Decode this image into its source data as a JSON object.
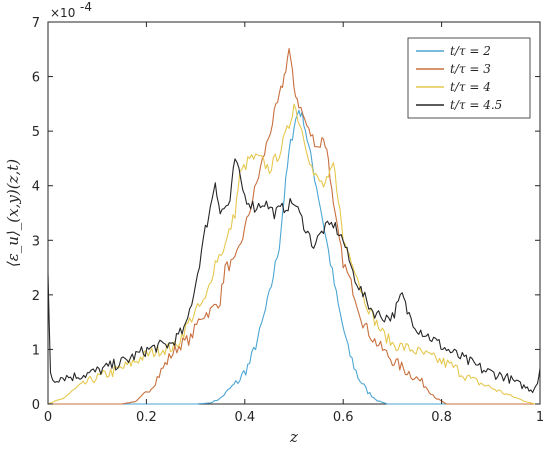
{
  "chart_data": {
    "type": "line",
    "title": "",
    "xlabel": "z",
    "ylabel": "⟨ε_u⟩_(x,y)(z,t)",
    "xlim": [
      0,
      1
    ],
    "ylim": [
      0,
      7
    ],
    "y_multiplier_label": "×10",
    "y_multiplier_exponent": "-4",
    "xticks": [
      "0",
      "0.2",
      "0.4",
      "0.6",
      "0.8",
      "1"
    ],
    "yticks": [
      "0",
      "1",
      "2",
      "3",
      "4",
      "5",
      "6",
      "7"
    ],
    "grid": false,
    "legend_position": "top-right",
    "series": [
      {
        "name": "t/τ = 2",
        "color": "#4DA6D3",
        "points": [
          [
            0,
            0
          ],
          [
            0.3,
            0
          ],
          [
            0.33,
            0.02
          ],
          [
            0.35,
            0.1
          ],
          [
            0.37,
            0.28
          ],
          [
            0.39,
            0.45
          ],
          [
            0.41,
            0.75
          ],
          [
            0.43,
            1.3
          ],
          [
            0.45,
            2.0
          ],
          [
            0.47,
            2.9
          ],
          [
            0.48,
            3.8
          ],
          [
            0.49,
            4.6
          ],
          [
            0.5,
            5.1
          ],
          [
            0.51,
            5.4
          ],
          [
            0.52,
            5.2
          ],
          [
            0.53,
            4.7
          ],
          [
            0.55,
            3.8
          ],
          [
            0.57,
            2.8
          ],
          [
            0.59,
            1.8
          ],
          [
            0.61,
            1.0
          ],
          [
            0.63,
            0.5
          ],
          [
            0.65,
            0.22
          ],
          [
            0.67,
            0.06
          ],
          [
            0.69,
            0.0
          ],
          [
            1,
            0
          ]
        ]
      },
      {
        "name": "t/τ = 3",
        "color": "#C8703F",
        "points": [
          [
            0,
            0
          ],
          [
            0.15,
            0
          ],
          [
            0.18,
            0.05
          ],
          [
            0.21,
            0.3
          ],
          [
            0.23,
            0.6
          ],
          [
            0.25,
            0.9
          ],
          [
            0.27,
            1.1
          ],
          [
            0.29,
            1.2
          ],
          [
            0.31,
            1.6
          ],
          [
            0.33,
            1.7
          ],
          [
            0.35,
            1.9
          ],
          [
            0.36,
            2.5
          ],
          [
            0.38,
            2.6
          ],
          [
            0.4,
            3.2
          ],
          [
            0.42,
            3.9
          ],
          [
            0.44,
            4.6
          ],
          [
            0.46,
            5.3
          ],
          [
            0.47,
            5.6
          ],
          [
            0.48,
            6.0
          ],
          [
            0.49,
            6.5
          ],
          [
            0.5,
            5.8
          ],
          [
            0.51,
            5.5
          ],
          [
            0.53,
            5.0
          ],
          [
            0.55,
            4.7
          ],
          [
            0.56,
            4.9
          ],
          [
            0.57,
            4.5
          ],
          [
            0.58,
            3.6
          ],
          [
            0.6,
            2.6
          ],
          [
            0.62,
            2.1
          ],
          [
            0.64,
            1.5
          ],
          [
            0.66,
            1.2
          ],
          [
            0.68,
            1.0
          ],
          [
            0.7,
            0.8
          ],
          [
            0.73,
            0.6
          ],
          [
            0.76,
            0.4
          ],
          [
            0.79,
            0.1
          ],
          [
            0.81,
            0.0
          ],
          [
            1,
            0
          ]
        ]
      },
      {
        "name": "t/τ = 4",
        "color": "#E6C84F",
        "points": [
          [
            0,
            0
          ],
          [
            0.03,
            0.1
          ],
          [
            0.06,
            0.3
          ],
          [
            0.09,
            0.45
          ],
          [
            0.12,
            0.55
          ],
          [
            0.15,
            0.65
          ],
          [
            0.18,
            0.8
          ],
          [
            0.2,
            0.9
          ],
          [
            0.23,
            1.0
          ],
          [
            0.26,
            1.05
          ],
          [
            0.28,
            1.4
          ],
          [
            0.3,
            1.7
          ],
          [
            0.32,
            1.9
          ],
          [
            0.34,
            2.6
          ],
          [
            0.36,
            2.9
          ],
          [
            0.38,
            3.5
          ],
          [
            0.39,
            4.2
          ],
          [
            0.41,
            4.5
          ],
          [
            0.43,
            4.5
          ],
          [
            0.45,
            4.3
          ],
          [
            0.47,
            4.6
          ],
          [
            0.49,
            5.1
          ],
          [
            0.5,
            5.5
          ],
          [
            0.52,
            4.9
          ],
          [
            0.54,
            4.2
          ],
          [
            0.56,
            4.0
          ],
          [
            0.57,
            4.1
          ],
          [
            0.58,
            4.4
          ],
          [
            0.59,
            3.8
          ],
          [
            0.6,
            3.0
          ],
          [
            0.62,
            2.6
          ],
          [
            0.64,
            2.0
          ],
          [
            0.66,
            1.6
          ],
          [
            0.68,
            1.3
          ],
          [
            0.7,
            1.1
          ],
          [
            0.74,
            1.0
          ],
          [
            0.78,
            0.85
          ],
          [
            0.82,
            0.7
          ],
          [
            0.86,
            0.45
          ],
          [
            0.9,
            0.3
          ],
          [
            0.94,
            0.15
          ],
          [
            0.97,
            0.05
          ],
          [
            0.99,
            0.0
          ],
          [
            1,
            0
          ]
        ]
      },
      {
        "name": "t/τ = 4.5",
        "color": "#262626",
        "points": [
          [
            0,
            2.3
          ],
          [
            0.005,
            0.6
          ],
          [
            0.01,
            0.45
          ],
          [
            0.03,
            0.5
          ],
          [
            0.05,
            0.5
          ],
          [
            0.08,
            0.55
          ],
          [
            0.1,
            0.6
          ],
          [
            0.13,
            0.7
          ],
          [
            0.16,
            0.8
          ],
          [
            0.19,
            0.95
          ],
          [
            0.22,
            1.05
          ],
          [
            0.25,
            1.1
          ],
          [
            0.28,
            1.4
          ],
          [
            0.3,
            2.2
          ],
          [
            0.32,
            3.2
          ],
          [
            0.33,
            3.6
          ],
          [
            0.34,
            4.1
          ],
          [
            0.35,
            3.5
          ],
          [
            0.37,
            3.7
          ],
          [
            0.38,
            4.5
          ],
          [
            0.4,
            3.8
          ],
          [
            0.42,
            3.6
          ],
          [
            0.44,
            3.7
          ],
          [
            0.46,
            3.5
          ],
          [
            0.48,
            3.6
          ],
          [
            0.5,
            3.7
          ],
          [
            0.52,
            3.3
          ],
          [
            0.54,
            2.9
          ],
          [
            0.56,
            3.2
          ],
          [
            0.58,
            3.3
          ],
          [
            0.6,
            3.0
          ],
          [
            0.62,
            2.4
          ],
          [
            0.64,
            2.0
          ],
          [
            0.66,
            1.7
          ],
          [
            0.68,
            1.6
          ],
          [
            0.7,
            1.6
          ],
          [
            0.72,
            2.0
          ],
          [
            0.73,
            1.7
          ],
          [
            0.75,
            1.4
          ],
          [
            0.78,
            1.2
          ],
          [
            0.81,
            1.0
          ],
          [
            0.85,
            0.8
          ],
          [
            0.89,
            0.6
          ],
          [
            0.93,
            0.5
          ],
          [
            0.96,
            0.35
          ],
          [
            0.985,
            0.25
          ],
          [
            0.995,
            0.4
          ],
          [
            1,
            0.65
          ]
        ]
      }
    ]
  }
}
